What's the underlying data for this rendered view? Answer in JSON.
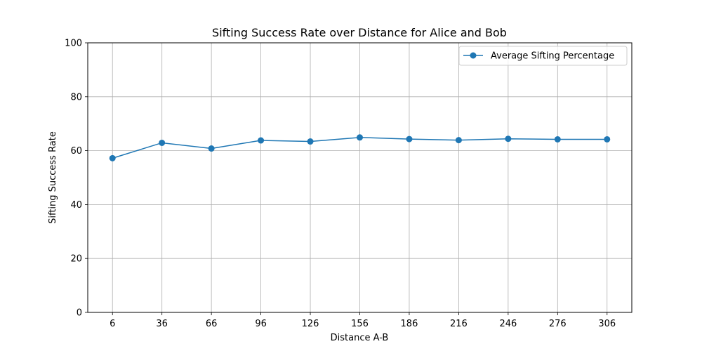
{
  "chart_data": {
    "type": "line",
    "title": "Sifting Success Rate over Distance for Alice and Bob",
    "xlabel": "Distance A-B",
    "ylabel": "Sifting Success Rate",
    "x": [
      6,
      36,
      66,
      96,
      126,
      156,
      186,
      216,
      246,
      276,
      306
    ],
    "xticks": [
      "6",
      "36",
      "66",
      "96",
      "126",
      "156",
      "186",
      "216",
      "246",
      "276",
      "306"
    ],
    "ylim": [
      0,
      100
    ],
    "yticks": [
      0,
      20,
      40,
      60,
      80,
      100
    ],
    "grid": true,
    "legend_position": "top-right",
    "series": [
      {
        "name": "Average Sifting Percentage",
        "color": "#1f77b4",
        "marker": "circle",
        "values": [
          57.2,
          62.9,
          60.8,
          63.8,
          63.4,
          64.9,
          64.3,
          63.9,
          64.4,
          64.2,
          64.2
        ]
      }
    ]
  }
}
